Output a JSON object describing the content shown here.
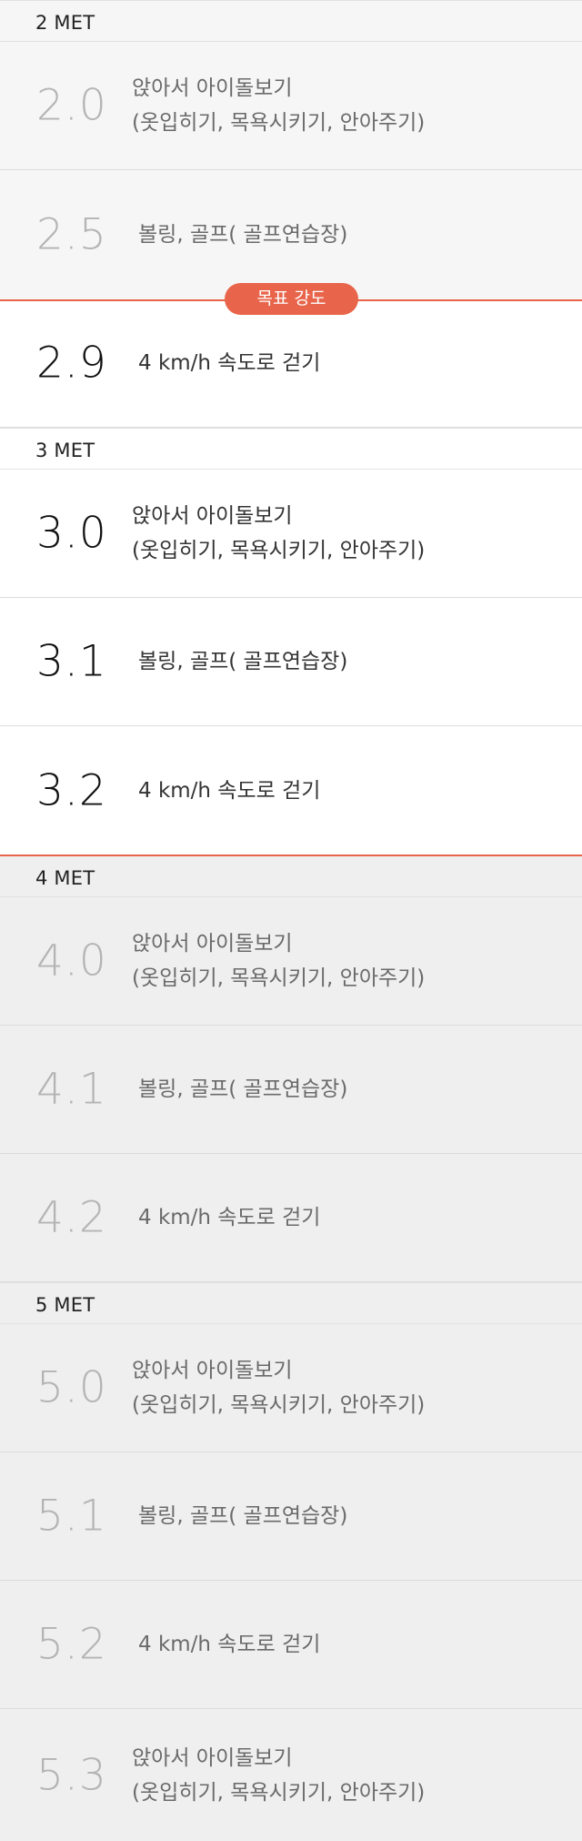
{
  "target_badge": "목표 강도",
  "sections": [
    {
      "header": "2 MET",
      "rows": [
        {
          "met": "2.0",
          "line1": "앉아서 아이돌보기",
          "line2": "(옷입히기, 목욕시키기, 안아주기)"
        },
        {
          "met": "2.5",
          "line1": "볼링,  골프( 골프연습장)"
        },
        {
          "met": "2.9",
          "line1": "4 km/h 속도로 걷기"
        }
      ]
    },
    {
      "header": "3 MET",
      "rows": [
        {
          "met": "3.0",
          "line1": "앉아서 아이돌보기",
          "line2": "(옷입히기, 목욕시키기, 안아주기)"
        },
        {
          "met": "3.1",
          "line1": "볼링,  골프( 골프연습장)"
        },
        {
          "met": "3.2",
          "line1": "4 km/h 속도로 걷기"
        }
      ]
    },
    {
      "header": "4 MET",
      "rows": [
        {
          "met": "4.0",
          "line1": "앉아서 아이돌보기",
          "line2": "(옷입히기, 목욕시키기, 안아주기)"
        },
        {
          "met": "4.1",
          "line1": "볼링,  골프( 골프연습장)"
        },
        {
          "met": "4.2",
          "line1": "4 km/h 속도로 걷기"
        }
      ]
    },
    {
      "header": "5 MET",
      "rows": [
        {
          "met": "5.0",
          "line1": "앉아서 아이돌보기",
          "line2": "(옷입히기, 목욕시키기, 안아주기)"
        },
        {
          "met": "5.1",
          "line1": "볼링,  골프( 골프연습장)"
        },
        {
          "met": "5.2",
          "line1": "4 km/h 속도로 걷기"
        },
        {
          "met": "5.3",
          "line1": "앉아서 아이돌보기",
          "line2": "(옷입히기, 목욕시키기, 안아주기)"
        }
      ]
    }
  ]
}
